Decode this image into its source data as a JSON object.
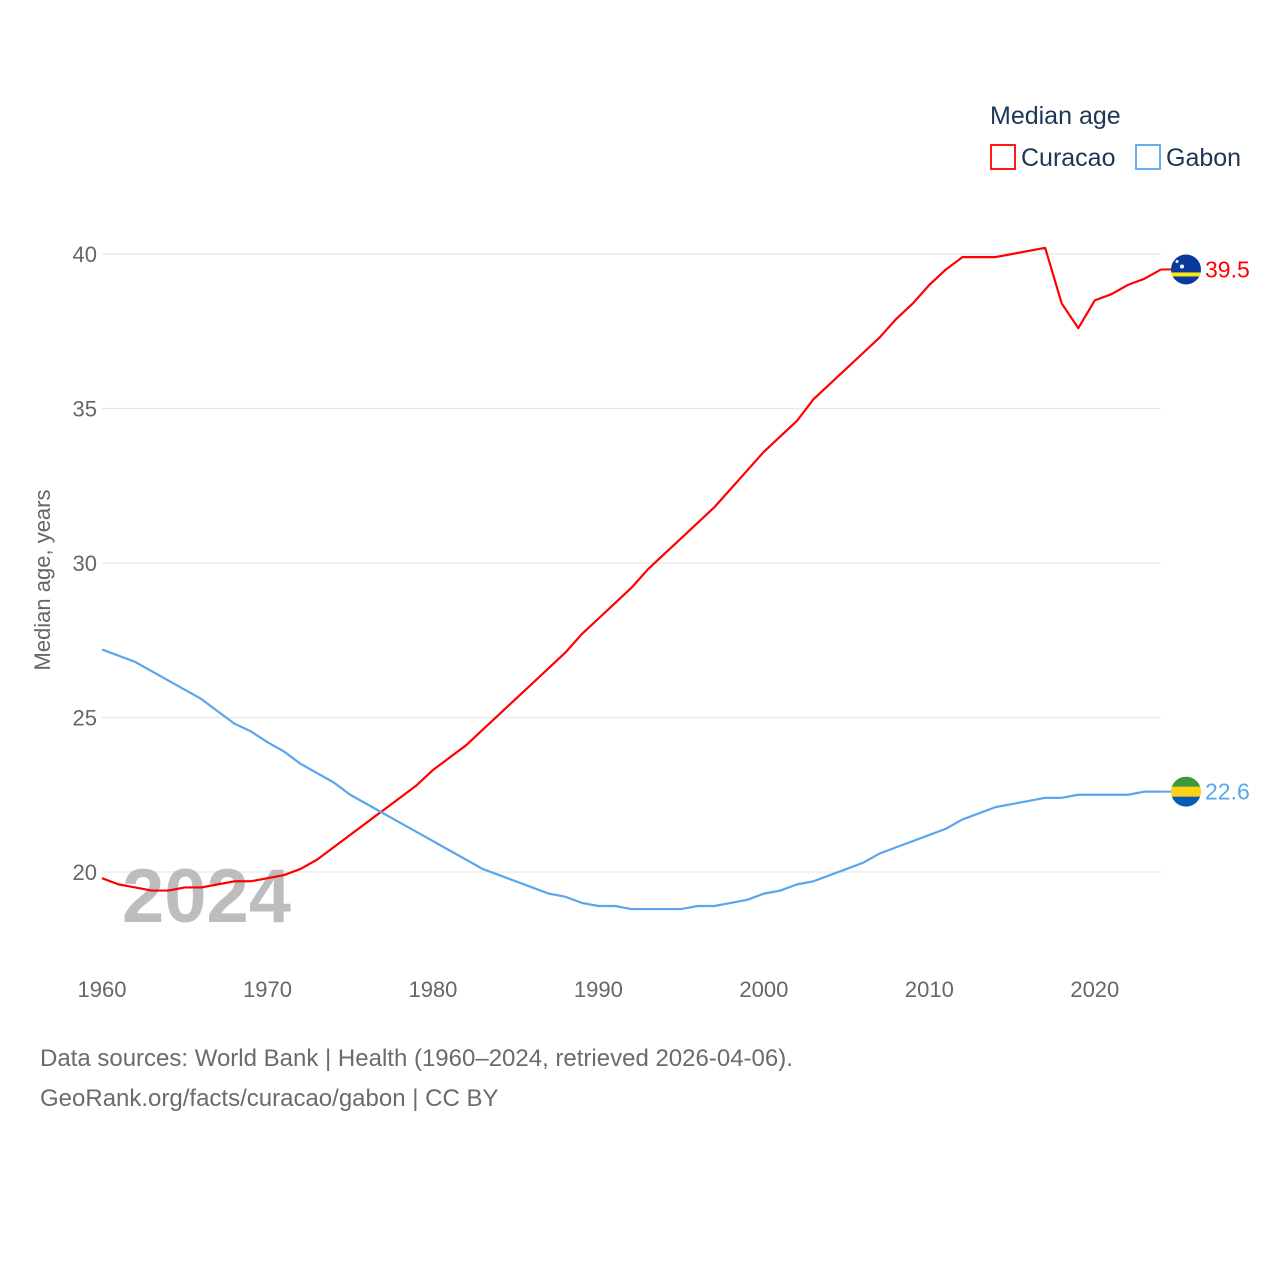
{
  "chart_data": {
    "type": "line",
    "title": "",
    "xlabel": "",
    "ylabel": "Median age, years",
    "xlim": [
      1960,
      2024
    ],
    "ylim": [
      17.5,
      41
    ],
    "yticks": [
      20,
      25,
      30,
      35,
      40
    ],
    "xticks": [
      1960,
      1970,
      1980,
      1990,
      2000,
      2010,
      2020
    ],
    "grid": true,
    "legend": {
      "title": "Median age",
      "placement": "top-right"
    },
    "year_watermark": "2024",
    "x": [
      1960,
      1961,
      1962,
      1963,
      1964,
      1965,
      1966,
      1967,
      1968,
      1969,
      1970,
      1971,
      1972,
      1973,
      1974,
      1975,
      1976,
      1977,
      1978,
      1979,
      1980,
      1981,
      1982,
      1983,
      1984,
      1985,
      1986,
      1987,
      1988,
      1989,
      1990,
      1991,
      1992,
      1993,
      1994,
      1995,
      1996,
      1997,
      1998,
      1999,
      2000,
      2001,
      2002,
      2003,
      2004,
      2005,
      2006,
      2007,
      2008,
      2009,
      2010,
      2011,
      2012,
      2013,
      2014,
      2015,
      2016,
      2017,
      2018,
      2019,
      2020,
      2021,
      2022,
      2023,
      2024
    ],
    "series": [
      {
        "name": "Curacao",
        "color": "#ff0000",
        "last_label": "39.5",
        "values": [
          19.8,
          19.6,
          19.5,
          19.4,
          19.4,
          19.5,
          19.5,
          19.6,
          19.7,
          19.7,
          19.8,
          19.9,
          20.1,
          20.4,
          20.8,
          21.2,
          21.6,
          22.0,
          22.4,
          22.8,
          23.3,
          23.7,
          24.1,
          24.6,
          25.1,
          25.6,
          26.1,
          26.6,
          27.1,
          27.7,
          28.2,
          28.7,
          29.2,
          29.8,
          30.3,
          30.8,
          31.3,
          31.8,
          32.4,
          33.0,
          33.6,
          34.1,
          34.6,
          35.3,
          35.8,
          36.3,
          36.8,
          37.3,
          37.9,
          38.4,
          39.0,
          39.5,
          39.9,
          39.9,
          39.9,
          40.0,
          40.1,
          40.2,
          38.4,
          37.6,
          38.5,
          38.7,
          39.0,
          39.2,
          39.5
        ]
      },
      {
        "name": "Gabon",
        "color": "#5aa5ee",
        "last_label": "22.6",
        "values": [
          27.2,
          27.0,
          26.8,
          26.5,
          26.2,
          25.9,
          25.6,
          25.2,
          24.8,
          24.55,
          24.2,
          23.9,
          23.5,
          23.2,
          22.9,
          22.5,
          22.2,
          21.9,
          21.6,
          21.3,
          21.0,
          20.7,
          20.4,
          20.1,
          19.9,
          19.7,
          19.5,
          19.3,
          19.2,
          19.0,
          18.9,
          18.9,
          18.8,
          18.8,
          18.8,
          18.8,
          18.9,
          18.9,
          19.0,
          19.1,
          19.3,
          19.4,
          19.6,
          19.7,
          19.9,
          20.1,
          20.3,
          20.6,
          20.8,
          21.0,
          21.2,
          21.4,
          21.7,
          21.9,
          22.1,
          22.2,
          22.3,
          22.4,
          22.4,
          22.5,
          22.5,
          22.5,
          22.5,
          22.6,
          22.6
        ]
      }
    ]
  },
  "footer": {
    "line1": "Data sources: World Bank | Health (1960–2024, retrieved 2026-04-06).",
    "line2": "GeoRank.org/facts/curacao/gabon | CC BY"
  }
}
